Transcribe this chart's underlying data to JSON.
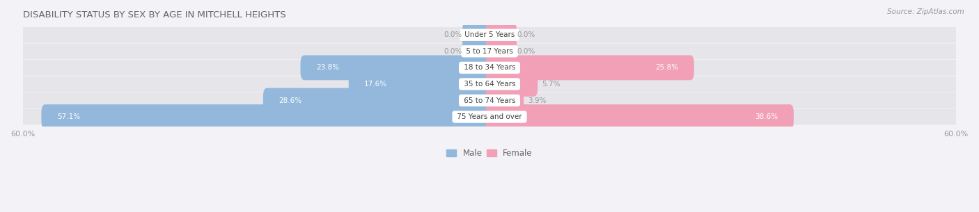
{
  "title": "DISABILITY STATUS BY SEX BY AGE IN MITCHELL HEIGHTS",
  "source": "Source: ZipAtlas.com",
  "categories": [
    "Under 5 Years",
    "5 to 17 Years",
    "18 to 34 Years",
    "35 to 64 Years",
    "65 to 74 Years",
    "75 Years and over"
  ],
  "male_values": [
    0.0,
    0.0,
    23.8,
    17.6,
    28.6,
    57.1
  ],
  "female_values": [
    0.0,
    0.0,
    25.8,
    5.7,
    3.9,
    38.6
  ],
  "x_max": 60.0,
  "male_color": "#93b8db",
  "female_color": "#f2a0b8",
  "label_color": "#999999",
  "bg_row_color": "#e5e5ea",
  "bg_figure_color": "#f2f2f7",
  "title_color": "#666666",
  "bar_height": 0.52,
  "stub_value": 3.0,
  "figsize": [
    14.06,
    3.05
  ],
  "dpi": 100
}
